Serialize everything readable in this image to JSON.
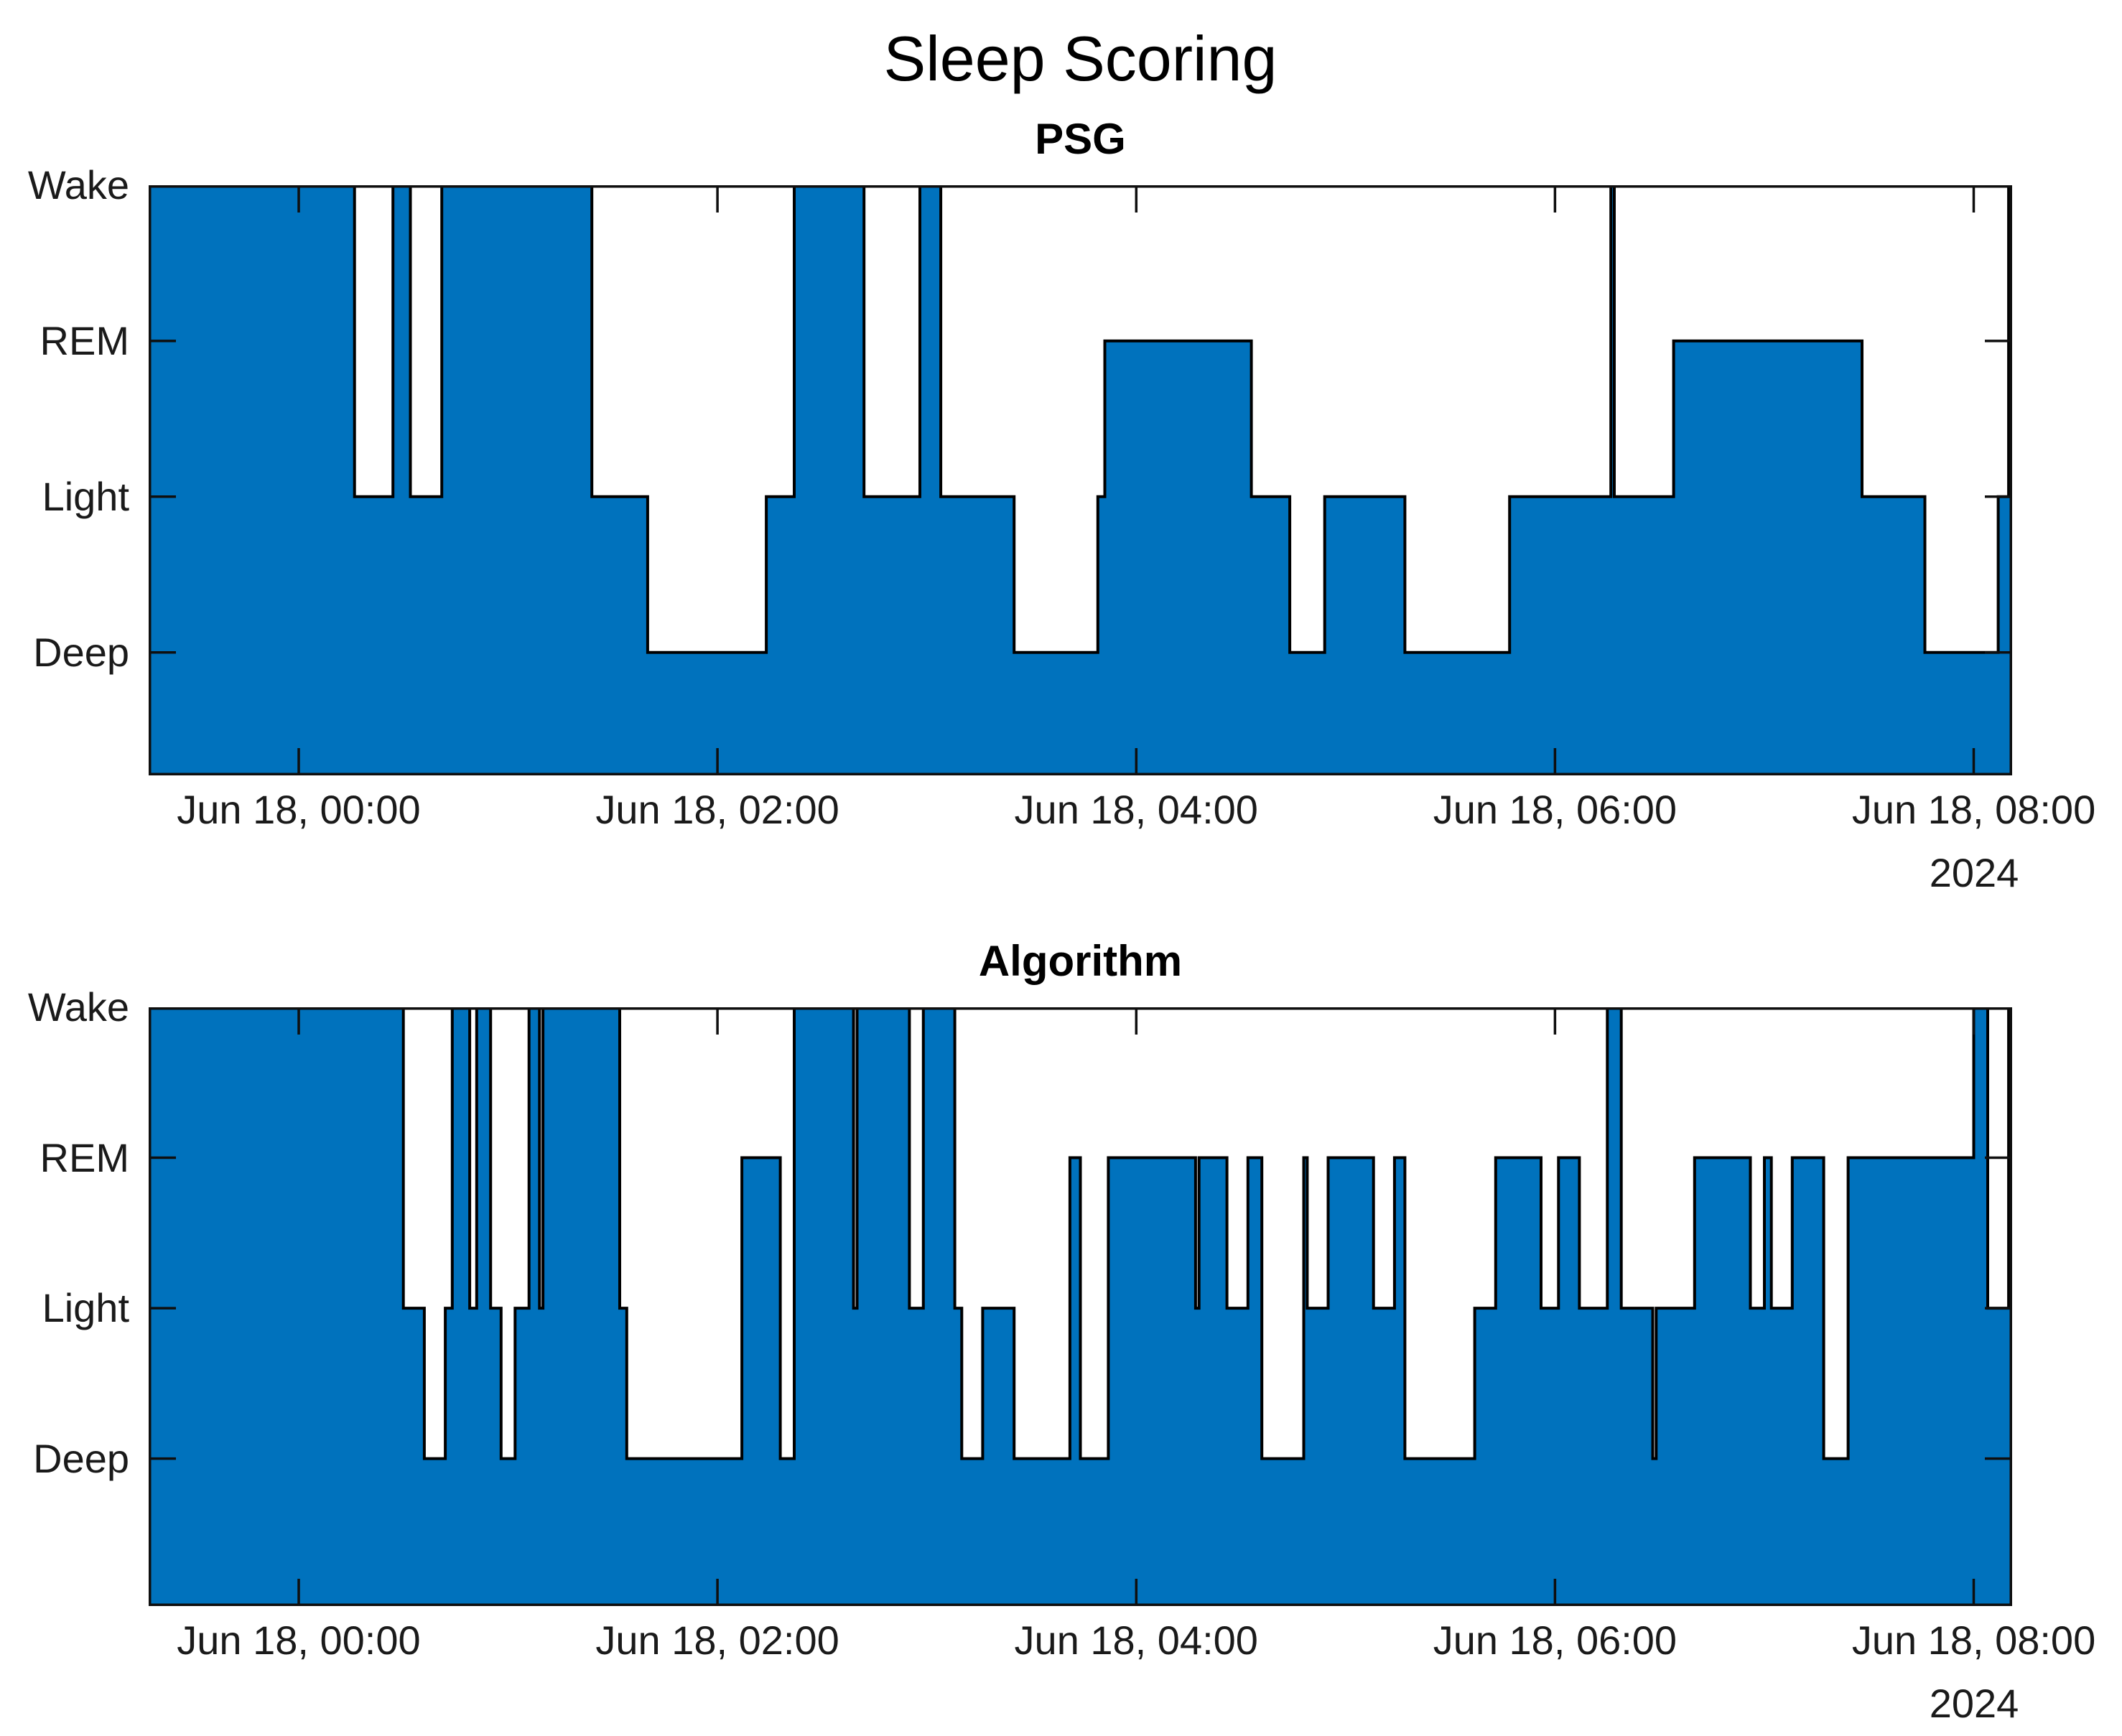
{
  "figure": {
    "title": "Sleep Scoring",
    "background_color": "#ffffff"
  },
  "chart_data": {
    "type": "area",
    "title": "Sleep Scoring",
    "x_axis": {
      "start_time": "23:17",
      "end_time": "08:11",
      "tick_hours": [
        0,
        2,
        4,
        6,
        8
      ],
      "tick_labels": [
        "Jun 18, 00:00",
        "Jun 18, 02:00",
        "Jun 18, 04:00",
        "Jun 18, 06:00",
        "Jun 18, 08:00"
      ],
      "year_label": "2024",
      "date": "Jun 18, 2024"
    },
    "y_axis": {
      "stage_labels": [
        "Wake",
        "REM",
        "Light",
        "Deep"
      ],
      "stage_levels": {
        "Wake": 4,
        "REM": 3,
        "Light": 2,
        "Deep": 1
      }
    },
    "colors": {
      "fill": "#0072BD",
      "edge": "#000000",
      "axis": "#0f0f0f",
      "text": "#1a1a1a"
    },
    "legend": "none",
    "grid": "off",
    "subplots": [
      {
        "title": "PSG",
        "ylim_bottom_stage": 0.21,
        "end_time": "08:11",
        "segments": [
          {
            "start": "23:17",
            "stage": "Wake"
          },
          {
            "start": "00:16",
            "stage": "Light"
          },
          {
            "start": "00:27",
            "stage": "Wake"
          },
          {
            "start": "00:32",
            "stage": "Light"
          },
          {
            "start": "00:41",
            "stage": "Wake"
          },
          {
            "start": "01:24",
            "stage": "Light"
          },
          {
            "start": "01:40",
            "stage": "Deep"
          },
          {
            "start": "02:14",
            "stage": "Light"
          },
          {
            "start": "02:22",
            "stage": "Wake"
          },
          {
            "start": "02:42",
            "stage": "Light"
          },
          {
            "start": "02:58",
            "stage": "Wake"
          },
          {
            "start": "03:04",
            "stage": "Light"
          },
          {
            "start": "03:25",
            "stage": "Deep"
          },
          {
            "start": "03:49",
            "stage": "Light"
          },
          {
            "start": "03:51",
            "stage": "REM"
          },
          {
            "start": "04:33",
            "stage": "Light"
          },
          {
            "start": "04:44",
            "stage": "Deep"
          },
          {
            "start": "04:54",
            "stage": "Light"
          },
          {
            "start": "05:17",
            "stage": "Deep"
          },
          {
            "start": "05:47",
            "stage": "Light"
          },
          {
            "start": "06:16",
            "stage": "Wake"
          },
          {
            "start": "06:17",
            "stage": "Light"
          },
          {
            "start": "06:34",
            "stage": "REM"
          },
          {
            "start": "07:28",
            "stage": "Light"
          },
          {
            "start": "07:46",
            "stage": "Deep"
          },
          {
            "start": "08:07",
            "stage": "Light"
          },
          {
            "start": "08:10",
            "stage": "Wake"
          }
        ]
      },
      {
        "title": "Algorithm",
        "ylim_bottom_stage": 0.02,
        "end_time": "08:11",
        "segments": [
          {
            "start": "23:17",
            "stage": "Wake"
          },
          {
            "start": "00:30",
            "stage": "Light"
          },
          {
            "start": "00:36",
            "stage": "Deep"
          },
          {
            "start": "00:42",
            "stage": "Light"
          },
          {
            "start": "00:44",
            "stage": "Wake"
          },
          {
            "start": "00:49",
            "stage": "Light"
          },
          {
            "start": "00:51",
            "stage": "Wake"
          },
          {
            "start": "00:55",
            "stage": "Light"
          },
          {
            "start": "00:58",
            "stage": "Deep"
          },
          {
            "start": "01:02",
            "stage": "Light"
          },
          {
            "start": "01:06",
            "stage": "Wake"
          },
          {
            "start": "01:09",
            "stage": "Light"
          },
          {
            "start": "01:10",
            "stage": "Wake"
          },
          {
            "start": "01:32",
            "stage": "Light"
          },
          {
            "start": "01:34",
            "stage": "Deep"
          },
          {
            "start": "02:07",
            "stage": "REM"
          },
          {
            "start": "02:18",
            "stage": "Deep"
          },
          {
            "start": "02:22",
            "stage": "Wake"
          },
          {
            "start": "02:39",
            "stage": "Light"
          },
          {
            "start": "02:40",
            "stage": "Wake"
          },
          {
            "start": "02:55",
            "stage": "Light"
          },
          {
            "start": "02:59",
            "stage": "Wake"
          },
          {
            "start": "03:08",
            "stage": "Light"
          },
          {
            "start": "03:10",
            "stage": "Deep"
          },
          {
            "start": "03:16",
            "stage": "Light"
          },
          {
            "start": "03:25",
            "stage": "Deep"
          },
          {
            "start": "03:41",
            "stage": "REM"
          },
          {
            "start": "03:44",
            "stage": "Deep"
          },
          {
            "start": "03:52",
            "stage": "REM"
          },
          {
            "start": "04:17",
            "stage": "Light"
          },
          {
            "start": "04:18",
            "stage": "REM"
          },
          {
            "start": "04:26",
            "stage": "Light"
          },
          {
            "start": "04:32",
            "stage": "REM"
          },
          {
            "start": "04:36",
            "stage": "Deep"
          },
          {
            "start": "04:48",
            "stage": "REM"
          },
          {
            "start": "04:49",
            "stage": "Light"
          },
          {
            "start": "04:55",
            "stage": "REM"
          },
          {
            "start": "05:08",
            "stage": "Light"
          },
          {
            "start": "05:14",
            "stage": "REM"
          },
          {
            "start": "05:17",
            "stage": "Deep"
          },
          {
            "start": "05:37",
            "stage": "Light"
          },
          {
            "start": "05:43",
            "stage": "REM"
          },
          {
            "start": "05:56",
            "stage": "Light"
          },
          {
            "start": "06:01",
            "stage": "REM"
          },
          {
            "start": "06:07",
            "stage": "Light"
          },
          {
            "start": "06:15",
            "stage": "Wake"
          },
          {
            "start": "06:19",
            "stage": "Light"
          },
          {
            "start": "06:28",
            "stage": "Deep"
          },
          {
            "start": "06:29",
            "stage": "Light"
          },
          {
            "start": "06:40",
            "stage": "REM"
          },
          {
            "start": "06:56",
            "stage": "Light"
          },
          {
            "start": "07:00",
            "stage": "REM"
          },
          {
            "start": "07:02",
            "stage": "Light"
          },
          {
            "start": "07:08",
            "stage": "REM"
          },
          {
            "start": "07:17",
            "stage": "Deep"
          },
          {
            "start": "07:24",
            "stage": "REM"
          },
          {
            "start": "08:00",
            "stage": "Wake"
          },
          {
            "start": "08:04",
            "stage": "Light"
          },
          {
            "start": "08:10",
            "stage": "Wake"
          }
        ]
      }
    ]
  }
}
